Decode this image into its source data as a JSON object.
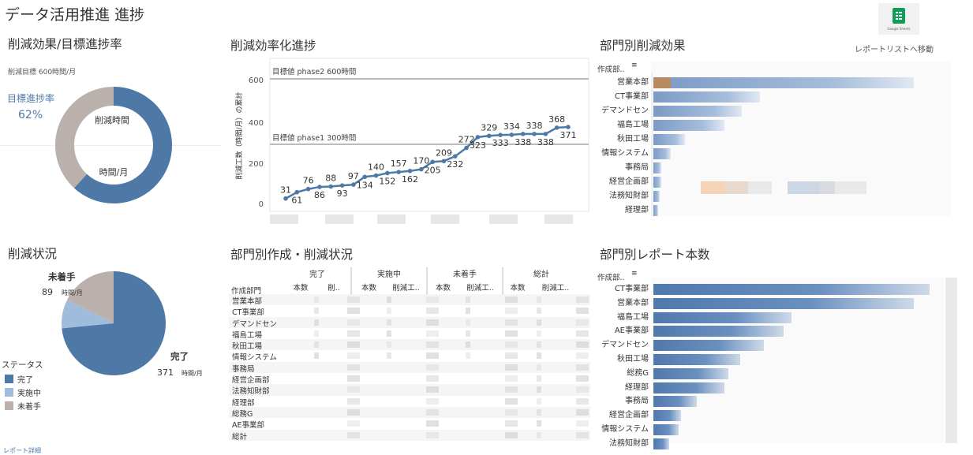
{
  "dashboard_title": "データ活用推進 進捗",
  "report_link": {
    "label": "レポートリストへ移動",
    "icon": "google-sheets-icon",
    "icon_caption": "Google Sheets"
  },
  "panels": {
    "progress": {
      "title": "削減効果/目標進捗率",
      "target_label": "削減目標 600時間/月",
      "rate_label": "目標進捗率",
      "rate_value": "62%",
      "donut_inner_label": "削減時間",
      "donut_unit": "時間/月",
      "colors": {
        "achieved": "#4e79a7",
        "remaining": "#bab0ac"
      }
    },
    "trend": {
      "title": "削減効率化進捗",
      "ylabel": "削減工数（時間/月）の累計",
      "line1": "目標値 phase2 600時間",
      "line2": "目標値 phase1 300時間",
      "yticks": [
        "0",
        "200",
        "400",
        "600"
      ]
    },
    "dept_effect": {
      "title": "部門別削減効果",
      "header": "作成部..",
      "depts": [
        "営業本部",
        "CT事業部",
        "デマンドセン",
        "福島工場",
        "秋田工場",
        "情報システム",
        "事務局",
        "経営企画部",
        "法務知財部",
        "経理部"
      ]
    },
    "status": {
      "title": "削減状況",
      "legend_title": "ステータス",
      "legend": [
        "完了",
        "実施中",
        "未着手"
      ],
      "done_label": "完了",
      "done_value": "371",
      "notstarted_label": "未着手",
      "notstarted_value": "89",
      "unit": "時間/月",
      "colors": {
        "done": "#4e79a7",
        "inprogress": "#a0bcdc",
        "notstarted": "#bab0ac"
      }
    },
    "dept_table": {
      "title": "部門別作成・削減状況",
      "groups": [
        "完了",
        "実施中",
        "未着手",
        "総計"
      ],
      "subheaders": [
        "本数",
        "削..",
        "本数",
        "削減工..",
        "本数",
        "削減工..",
        "本数",
        "削減工.."
      ],
      "rowhead": "作成部門",
      "rows": [
        "営業本部",
        "CT事業部",
        "デマンドセン",
        "福島工場",
        "秋田工場",
        "情報システム",
        "事務局",
        "経営企画部",
        "法務知財部",
        "経理部",
        "総務G",
        "AE事業部",
        "総計"
      ]
    },
    "report_count": {
      "title": "部門別レポート本数",
      "header": "作成部..",
      "depts": [
        "CT事業部",
        "営業本部",
        "福島工場",
        "AE事業部",
        "デマンドセン",
        "秋田工場",
        "総務G",
        "経理部",
        "事務局",
        "経営企画部",
        "情報システム",
        "法務知財部"
      ]
    }
  },
  "footer_text": "レポート詳細",
  "chart_data": [
    {
      "type": "pie",
      "title": "削減効果/目標進捗率",
      "labels": [
        "削減時間",
        "残り"
      ],
      "values": [
        371,
        229
      ]
    },
    {
      "type": "line",
      "title": "削減効率化進捗",
      "ylabel": "削減工数（時間/月）の累計",
      "ylim": [
        0,
        620
      ],
      "reference_lines": [
        {
          "label": "目標値 phase2 600時間",
          "value": 600
        },
        {
          "label": "目標値 phase1 300時間",
          "value": 300
        }
      ],
      "series": [
        {
          "name": "累計",
          "values": [
            31,
            61,
            76,
            86,
            88,
            93,
            97,
            134,
            140,
            152,
            157,
            162,
            170,
            205,
            209,
            232,
            272,
            323,
            329,
            333,
            334,
            338,
            338,
            338,
            368,
            371
          ]
        }
      ]
    },
    {
      "type": "pie",
      "title": "削減状況",
      "labels": [
        "完了",
        "実施中",
        "未着手"
      ],
      "values": [
        371,
        45,
        89
      ]
    }
  ]
}
